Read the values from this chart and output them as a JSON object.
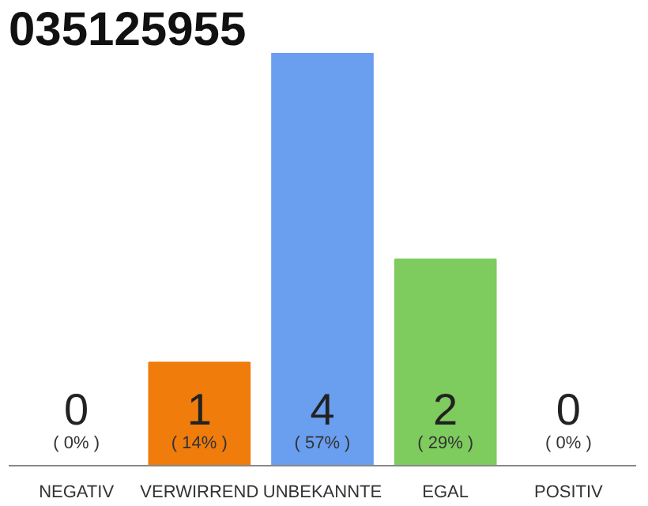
{
  "chart_data": {
    "type": "bar",
    "title": "035125955",
    "categories": [
      "NEGATIV",
      "VERWIRREND",
      "UNBEKANNTE",
      "EGAL",
      "POSITIV"
    ],
    "values": [
      0,
      1,
      4,
      2,
      0
    ],
    "colors": [
      "#f07c0c",
      "#f07c0c",
      "#6a9eef",
      "#7ecb5e",
      "#7ecb5e"
    ],
    "value_labels": [
      "0",
      "1",
      "4",
      "2",
      "0"
    ],
    "annotations": [
      "( 0% )",
      "( 14% )",
      "( 57% )",
      "( 29% )",
      "( 0% )"
    ],
    "grid": false
  }
}
